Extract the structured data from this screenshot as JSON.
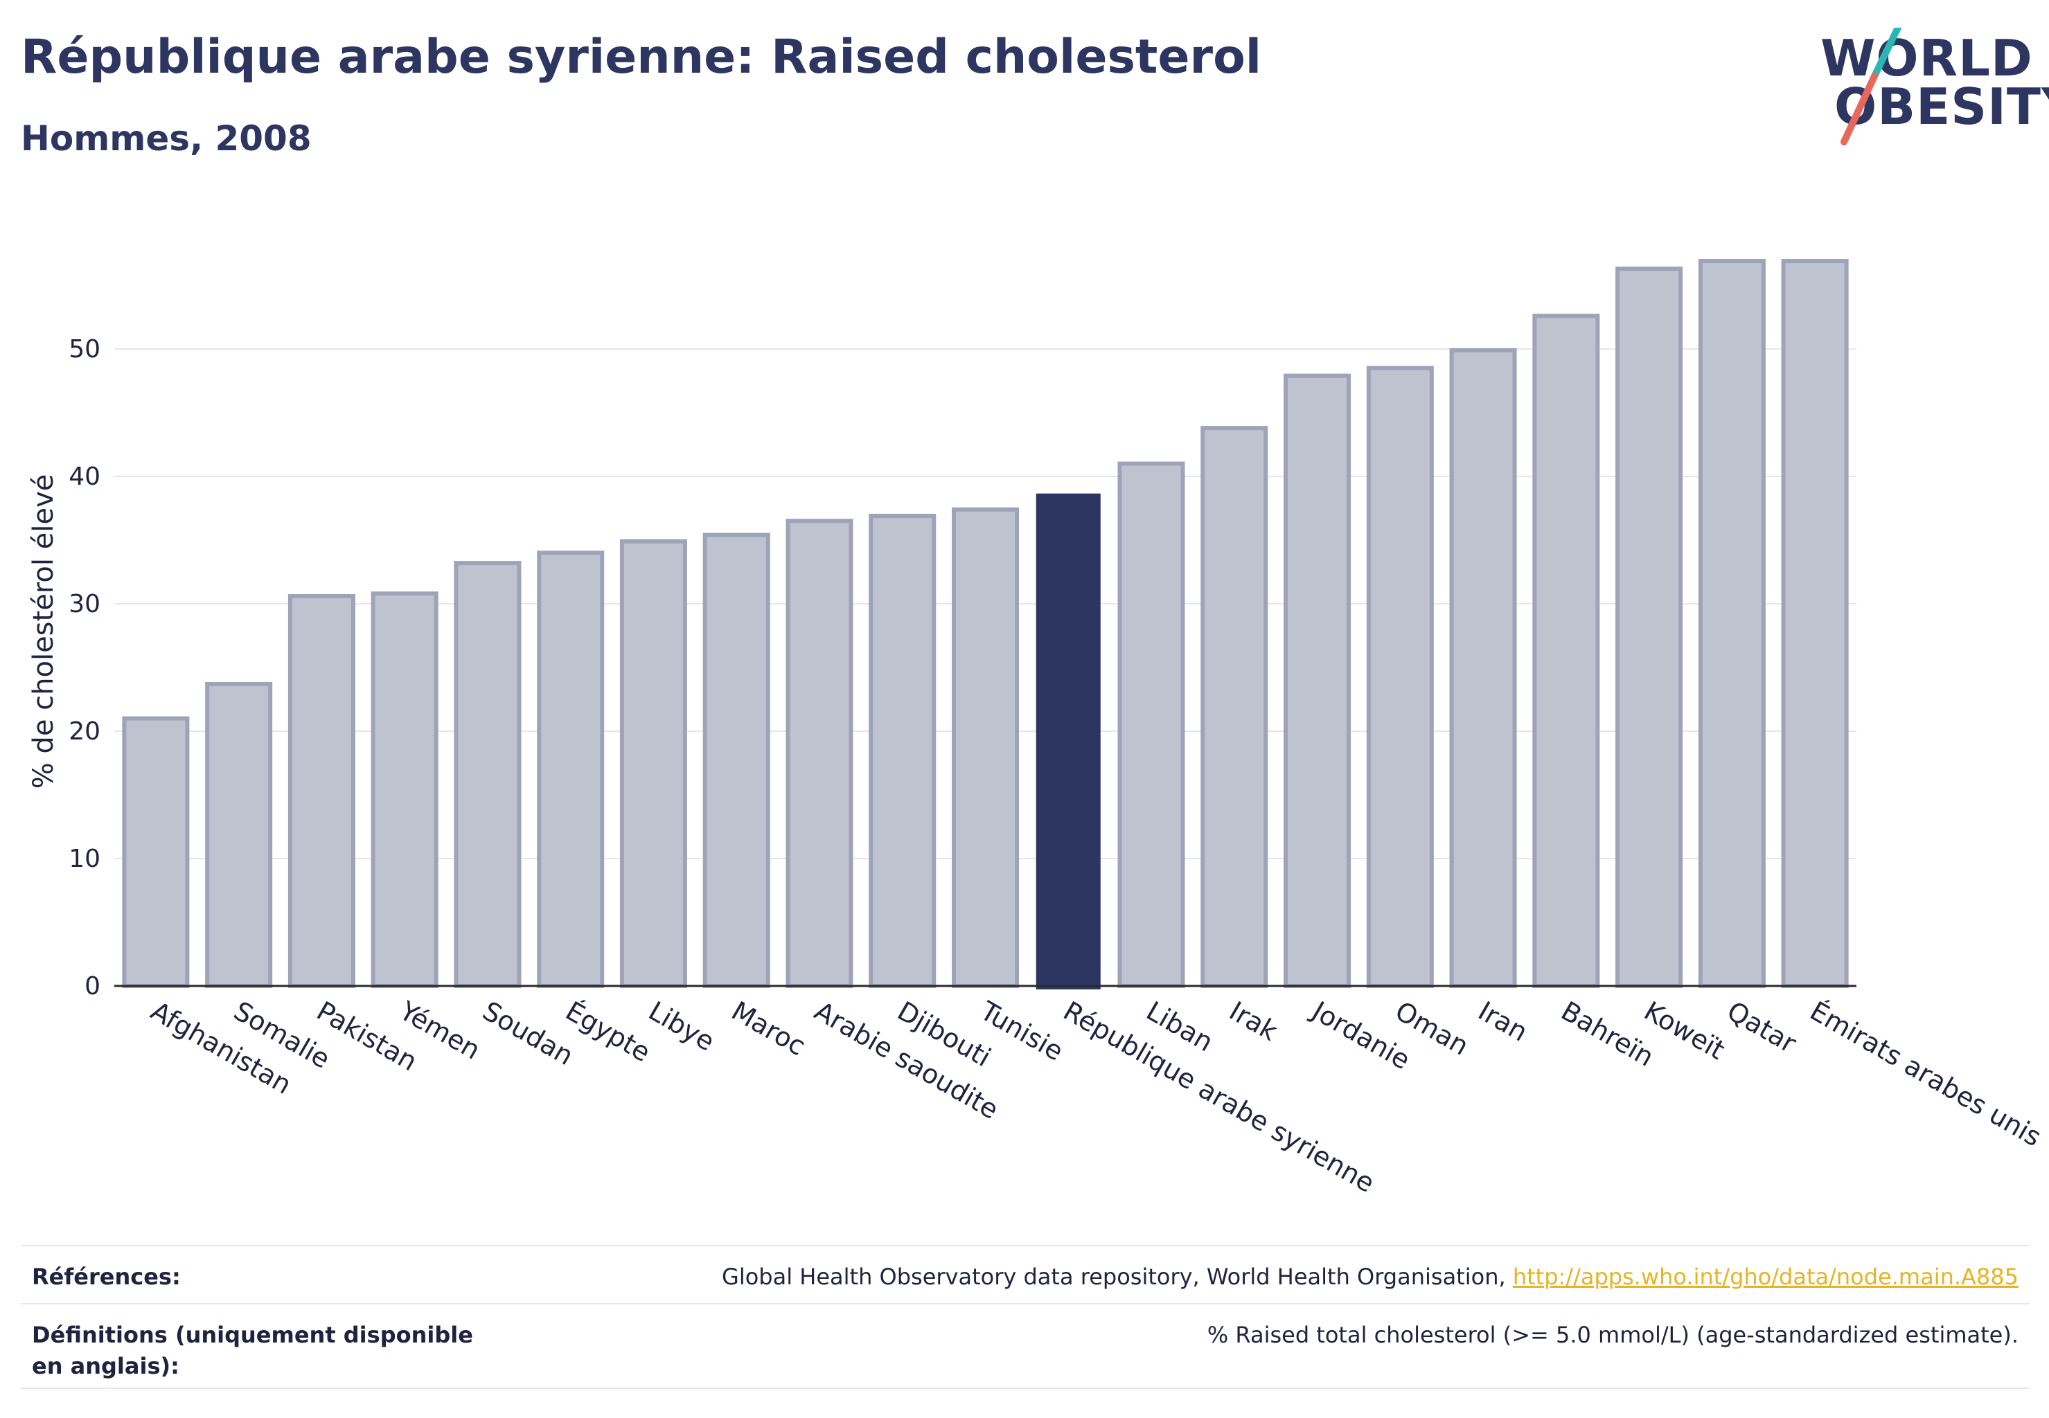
{
  "header": {
    "title": "République arabe syrienne: Raised cholesterol",
    "subtitle": "Hommes, 2008"
  },
  "logo": {
    "line1": "WORLD",
    "line2": "OBESITY",
    "colors": {
      "text": "#2d3561",
      "slash_top": "#2ab7b4",
      "slash_bottom": "#e8685a"
    }
  },
  "chart_data": {
    "type": "bar",
    "ylabel": "% de cholestérol élevé",
    "ylim": [
      0,
      60
    ],
    "yticks": [
      0,
      10,
      20,
      30,
      40,
      50
    ],
    "grid": true,
    "highlight": "République arabe syrienne",
    "colors": {
      "bar": "#bfc2cf",
      "bar_border": "#9fa3b8",
      "highlight": "#2d3561"
    },
    "categories": [
      "Afghanistan",
      "Somalie",
      "Pakistan",
      "Yémen",
      "Soudan",
      "Égypte",
      "Libye",
      "Maroc",
      "Arabie saoudite",
      "Djibouti",
      "Tunisie",
      "République arabe syrienne",
      "Liban",
      "Irak",
      "Jordanie",
      "Oman",
      "Iran",
      "Bahreïn",
      "Koweït",
      "Qatar",
      "Émirats arabes unis"
    ],
    "values": [
      21.0,
      23.7,
      30.6,
      30.8,
      33.2,
      34.0,
      34.9,
      35.4,
      36.5,
      36.9,
      37.4,
      38.6,
      41.0,
      43.8,
      47.9,
      48.5,
      49.9,
      52.6,
      56.3,
      56.9,
      56.9
    ]
  },
  "footer": {
    "references_label": "Références:",
    "references_text": "Global Health Observatory data repository, World Health Organisation, ",
    "references_link": "http://apps.who.int/gho/data/node.main.A885",
    "definitions_label": "Définitions (uniquement disponible en anglais):",
    "definitions_text": "% Raised total cholesterol (>= 5.0 mmol/L) (age-standardized estimate)."
  }
}
